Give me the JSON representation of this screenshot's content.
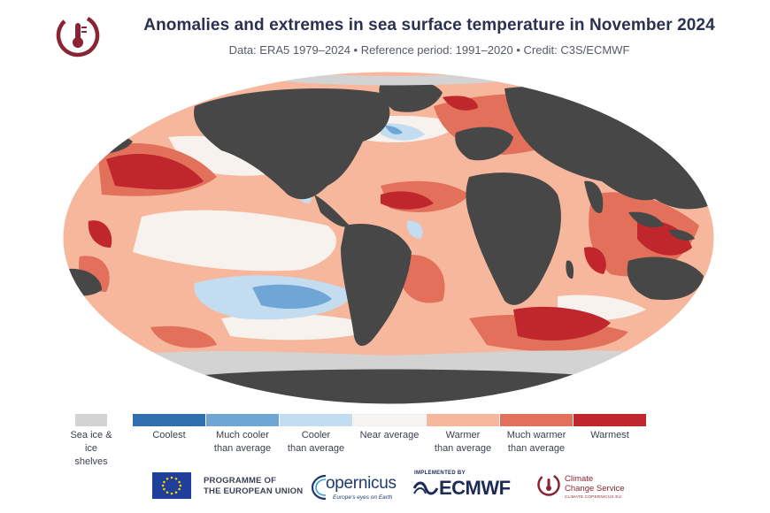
{
  "header": {
    "title": "Anomalies and extremes in sea surface temperature in November 2024",
    "subtitle": "Data: ERA5 1979–2024 • Reference period: 1991–2020 • Credit: C3S/ECMWF",
    "logo_icon": "c3s-thermometer-logo"
  },
  "legend": {
    "items": [
      {
        "label": "Sea ice &\nice shelves",
        "color": "#d3d3d3"
      },
      {
        "label": "Coolest",
        "color": "#2f6fb0"
      },
      {
        "label": "Much cooler\nthan average",
        "color": "#6fa6d6"
      },
      {
        "label": "Cooler\nthan average",
        "color": "#c4dcf0"
      },
      {
        "label": "Near average",
        "color": "#f7f5f3"
      },
      {
        "label": "Warmer\nthan average",
        "color": "#f6b79c"
      },
      {
        "label": "Much warmer\nthan average",
        "color": "#e2705a"
      },
      {
        "label": "Warmest",
        "color": "#c0272d"
      }
    ]
  },
  "map": {
    "projection": "Robinson-like world map",
    "land_color": "#474747",
    "ocean_base_color": "#f6b79c"
  },
  "footer": {
    "eu_line1": "PROGRAMME OF",
    "eu_line2": "THE EUROPEAN UNION",
    "copernicus_word": "opernicus",
    "copernicus_tag": "Europe's eyes on Earth",
    "implemented_by": "IMPLEMENTED BY",
    "ecmwf_word": "ECMWF",
    "c3s_line1": "Climate",
    "c3s_line2": "Change Service",
    "c3s_small": "CLIMATE.COPERNICUS.EU"
  }
}
